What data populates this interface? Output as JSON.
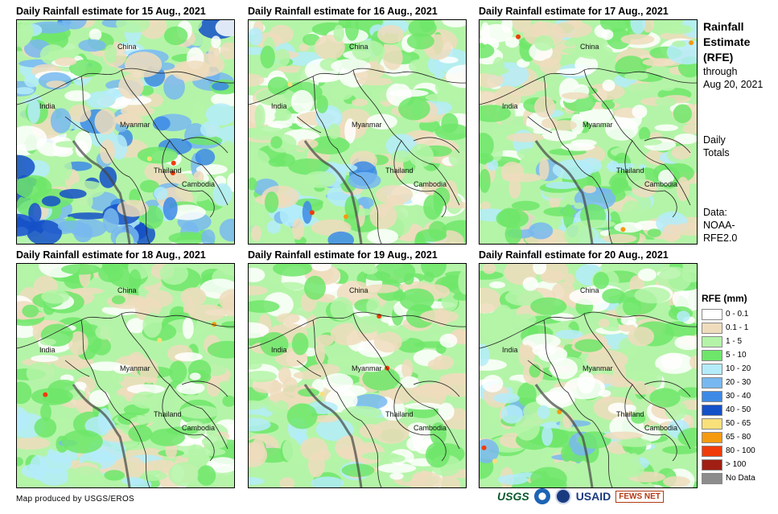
{
  "panels": [
    {
      "title": "Daily Rainfall estimate for 15 Aug., 2021",
      "seed": 15,
      "wet": 0.85
    },
    {
      "title": "Daily Rainfall estimate for 16 Aug., 2021",
      "seed": 16,
      "wet": 0.65
    },
    {
      "title": "Daily Rainfall estimate for 17 Aug., 2021",
      "seed": 17,
      "wet": 0.6
    },
    {
      "title": "Daily Rainfall estimate for 18 Aug., 2021",
      "seed": 18,
      "wet": 0.55
    },
    {
      "title": "Daily Rainfall estimate for 19 Aug., 2021",
      "seed": 19,
      "wet": 0.55
    },
    {
      "title": "Daily Rainfall estimate for 20 Aug., 2021",
      "seed": 20,
      "wet": 0.6
    }
  ],
  "map_labels": {
    "china": "China",
    "india": "India",
    "myanmar": "Myanmar",
    "thailand": "Thailand",
    "cambodia": "Cambodia"
  },
  "sidebar": {
    "title_line1": "Rainfall",
    "title_line2": "Estimate",
    "title_line3": "(RFE)",
    "through": "through",
    "date": "Aug 20, 2021",
    "daily": "Daily",
    "totals": "Totals",
    "data_label": "Data:",
    "data_source1": "NOAA-",
    "data_source2": "RFE2.0"
  },
  "legend": {
    "title": "RFE (mm)",
    "items": [
      {
        "label": "0 - 0.1",
        "color": "#ffffff"
      },
      {
        "label": "0.1 - 1",
        "color": "#efdcbd"
      },
      {
        "label": "1 - 5",
        "color": "#b4f4a8"
      },
      {
        "label": "5 - 10",
        "color": "#6ee66a"
      },
      {
        "label": "10 - 20",
        "color": "#b4ecfa"
      },
      {
        "label": "20 - 30",
        "color": "#78b8f0"
      },
      {
        "label": "30 - 40",
        "color": "#3c8ae6"
      },
      {
        "label": "40 - 50",
        "color": "#1450c8"
      },
      {
        "label": "50 - 65",
        "color": "#f8e07a"
      },
      {
        "label": "65 - 80",
        "color": "#f69a10"
      },
      {
        "label": "80 - 100",
        "color": "#f03c0a"
      },
      {
        "label": "> 100",
        "color": "#a01e14"
      },
      {
        "label": "No Data",
        "color": "#8c8c8c"
      }
    ]
  },
  "footer": "Map produced by USGS/EROS",
  "logos": {
    "usgs": "USGS",
    "usaid": "USAID",
    "fews": "FEWS NET"
  }
}
